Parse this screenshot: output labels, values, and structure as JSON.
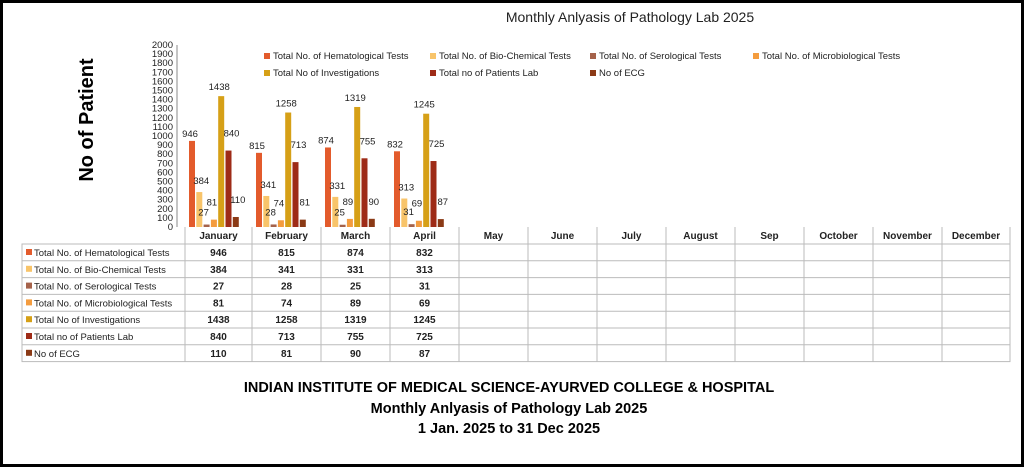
{
  "chart_data": {
    "type": "bar",
    "title": "Monthly Anlyasis of Pathology Lab  2025",
    "ylabel": "No of Patient",
    "xlabel": "",
    "ylim": [
      0,
      2000
    ],
    "ytick_step": 100,
    "yticks": [
      "2000",
      "1900",
      "1800",
      "1700",
      "1600",
      "1500",
      "1400",
      "1300",
      "1200",
      "1100",
      "1000",
      "900",
      "800",
      "700",
      "600",
      "500",
      "400",
      "300",
      "200",
      "100",
      "0"
    ],
    "grid": false,
    "legend_position": "top",
    "categories": [
      "January",
      "February",
      "March",
      "April",
      "May",
      "June",
      "July",
      "August",
      "Sep",
      "October",
      "November",
      "December"
    ],
    "series": [
      {
        "name": "Total No. of Hematological Tests",
        "color": "#E35B2C",
        "values": [
          946,
          815,
          874,
          832,
          null,
          null,
          null,
          null,
          null,
          null,
          null,
          null
        ]
      },
      {
        "name": "Total No. of Bio-Chemical Tests",
        "color": "#F8C46A",
        "values": [
          384,
          341,
          331,
          313,
          null,
          null,
          null,
          null,
          null,
          null,
          null,
          null
        ]
      },
      {
        "name": "Total No. of Serological Tests",
        "color": "#A5624A",
        "values": [
          27,
          28,
          25,
          31,
          null,
          null,
          null,
          null,
          null,
          null,
          null,
          null
        ]
      },
      {
        "name": "Total No. of Microbiological Tests",
        "color": "#F49C3E",
        "values": [
          81,
          74,
          89,
          69,
          null,
          null,
          null,
          null,
          null,
          null,
          null,
          null
        ]
      },
      {
        "name": "Total No of  Investigations",
        "color": "#D6A017",
        "values": [
          1438,
          1258,
          1319,
          1245,
          null,
          null,
          null,
          null,
          null,
          null,
          null,
          null
        ]
      },
      {
        "name": "Total no of Patients Lab",
        "color": "#9E2B17",
        "values": [
          840,
          713,
          755,
          725,
          null,
          null,
          null,
          null,
          null,
          null,
          null,
          null
        ]
      },
      {
        "name": "No of ECG",
        "color": "#8B3A16",
        "values": [
          110,
          81,
          90,
          87,
          null,
          null,
          null,
          null,
          null,
          null,
          null,
          null
        ]
      }
    ]
  },
  "footer": {
    "line1": "INDIAN INSTITUTE OF MEDICAL SCIENCE-AYURVED COLLEGE & HOSPITAL",
    "line2": "Monthly Anlyasis of Pathology Lab  2025",
    "line3": "1 Jan. 2025 to 31 Dec 2025"
  }
}
